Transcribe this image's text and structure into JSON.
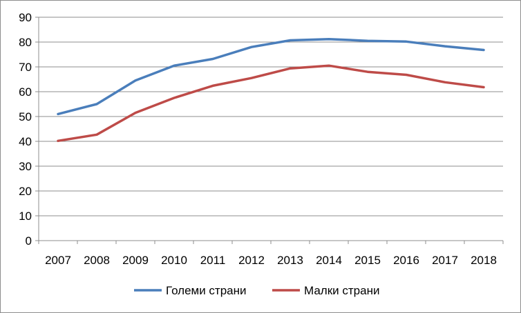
{
  "chart_data": {
    "type": "line",
    "categories": [
      "2007",
      "2008",
      "2009",
      "2010",
      "2011",
      "2012",
      "2013",
      "2014",
      "2015",
      "2016",
      "2017",
      "2018"
    ],
    "series": [
      {
        "name": "Големи страни",
        "color": "#4a7ebb",
        "values": [
          51,
          55,
          64.5,
          70.5,
          73.2,
          78,
          80.7,
          81.2,
          80.5,
          80.2,
          78.3,
          76.8
        ]
      },
      {
        "name": "Малки страни",
        "color": "#be4b48",
        "values": [
          40.2,
          42.7,
          51.5,
          57.5,
          62.4,
          65.5,
          69.4,
          70.5,
          68,
          66.8,
          63.8,
          61.8
        ]
      }
    ],
    "y_ticks": [
      "0",
      "10",
      "20",
      "30",
      "40",
      "50",
      "60",
      "70",
      "80",
      "90"
    ],
    "ylim": [
      0,
      90
    ],
    "grid": true,
    "legend_position": "bottom",
    "title": "",
    "xlabel": "",
    "ylabel": ""
  }
}
